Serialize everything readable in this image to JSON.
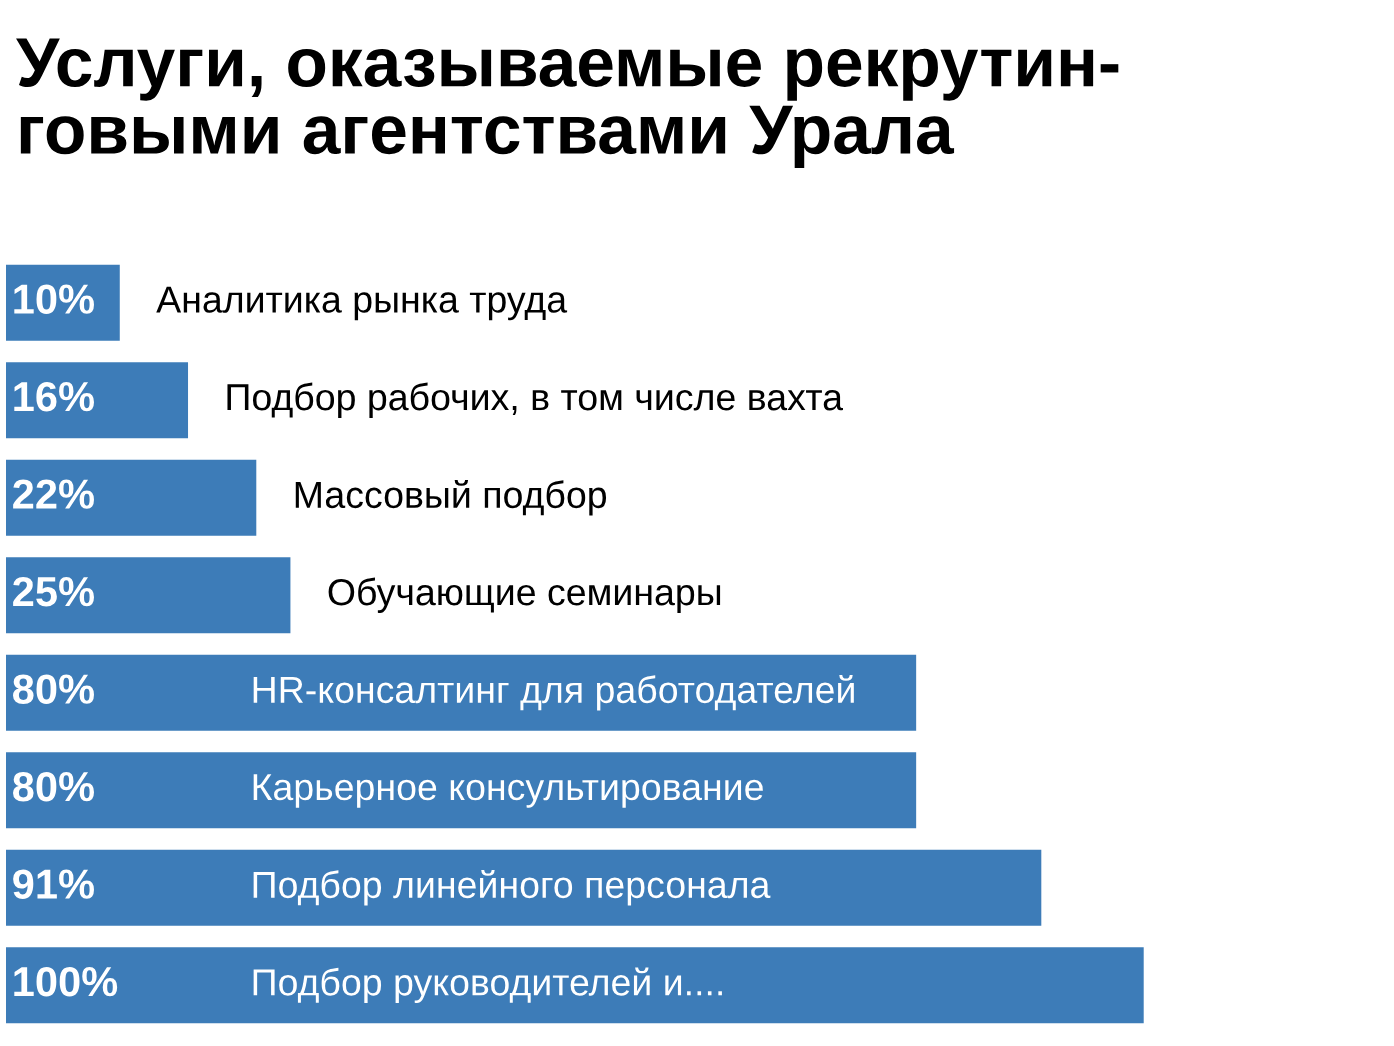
{
  "chart_data": {
    "type": "bar",
    "orientation": "horizontal",
    "title": "Услуги, оказываемые рекрутин-\nговыми агентствами Урала",
    "categories": [
      "Аналитика рынка труда",
      "Подбор рабочих, в том числе вахта",
      "Массовый подбор",
      "Обучающие семинары",
      "HR-консалтинг для работодателей",
      "Карьерное консультирование",
      "Подбор линейного персонала",
      "Подбор руководителей и...."
    ],
    "values": [
      10,
      16,
      22,
      25,
      80,
      80,
      91,
      100
    ],
    "value_labels": [
      "10%",
      "16%",
      "22%",
      "25%",
      "80%",
      "80%",
      "91%",
      "100%"
    ],
    "color": "#3d7cb8"
  }
}
